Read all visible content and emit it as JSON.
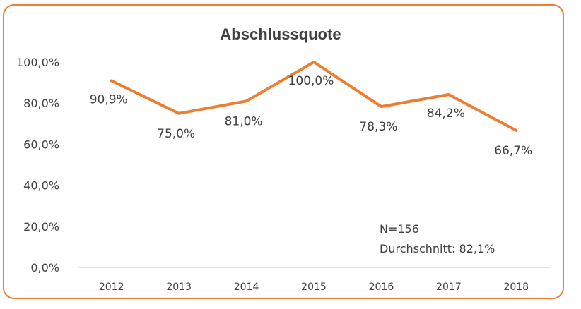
{
  "chart_data": {
    "type": "line",
    "title": "Abschlussquote",
    "categories": [
      "2012",
      "2013",
      "2014",
      "2015",
      "2016",
      "2017",
      "2018"
    ],
    "series": [
      {
        "values": [
          90.9,
          75.0,
          81.0,
          100.0,
          78.3,
          84.2,
          66.7
        ],
        "labels": [
          "90,9%",
          "75,0%",
          "81,0%",
          "100,0%",
          "78,3%",
          "84,2%",
          "66,7%"
        ],
        "color": "#ED7D31"
      }
    ],
    "ylim": [
      0,
      100
    ],
    "yticks": [
      "0,0%",
      "20,0%",
      "40,0%",
      "60,0%",
      "80,0%",
      "100,0%"
    ],
    "grid": false,
    "annotations": [
      "N=156",
      "Durchschnitt: 82,1%"
    ]
  },
  "colors": {
    "line": "#ED7D31",
    "frame": "#ED7D31",
    "axis": "#D9D9D9",
    "text": "#404040"
  }
}
